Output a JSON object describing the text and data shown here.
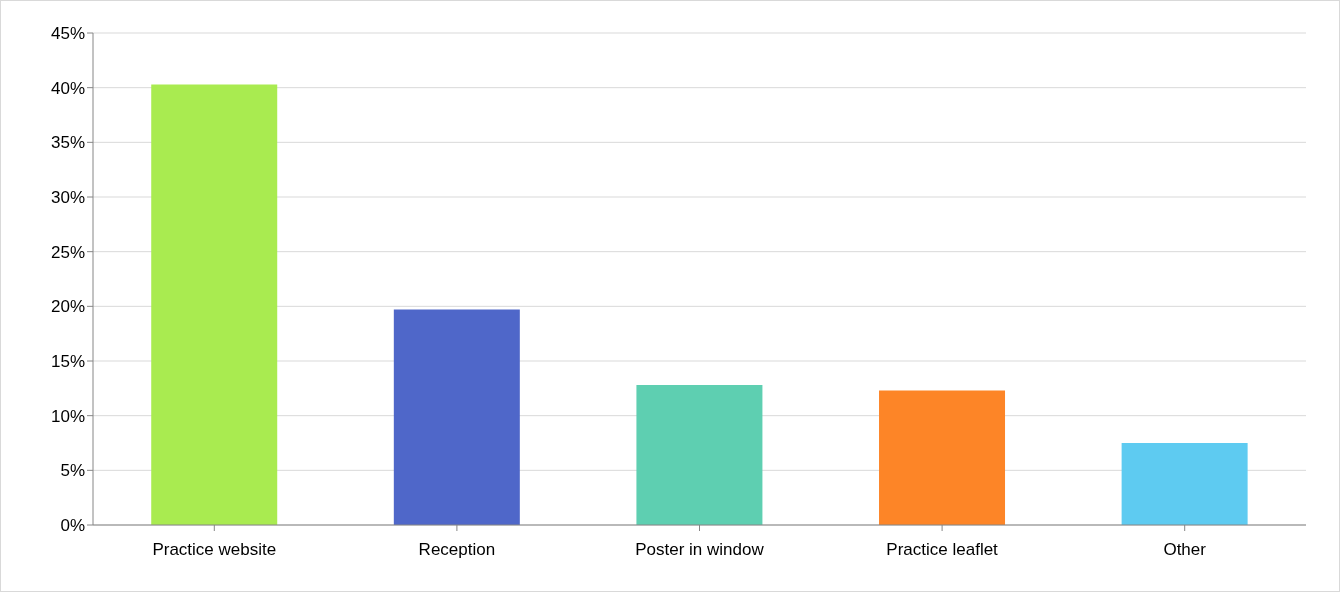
{
  "chart_data": {
    "type": "bar",
    "categories": [
      "Practice website",
      "Reception",
      "Poster in window",
      "Practice leaflet",
      "Other"
    ],
    "values": [
      40.3,
      19.7,
      12.8,
      12.3,
      7.5
    ],
    "colors": [
      "#a9eb50",
      "#4f67c9",
      "#5ecfb1",
      "#fd8527",
      "#5ecbf1"
    ],
    "ylim": [
      0,
      45
    ],
    "yticks": [
      {
        "value": 0,
        "label": "0%"
      },
      {
        "value": 5,
        "label": "5%"
      },
      {
        "value": 10,
        "label": "10%"
      },
      {
        "value": 15,
        "label": "15%"
      },
      {
        "value": 20,
        "label": "20%"
      },
      {
        "value": 25,
        "label": "25%"
      },
      {
        "value": 30,
        "label": "30%"
      },
      {
        "value": 35,
        "label": "35%"
      },
      {
        "value": 40,
        "label": "40%"
      },
      {
        "value": 45,
        "label": "45%"
      }
    ],
    "grid": "y",
    "legend": false
  }
}
